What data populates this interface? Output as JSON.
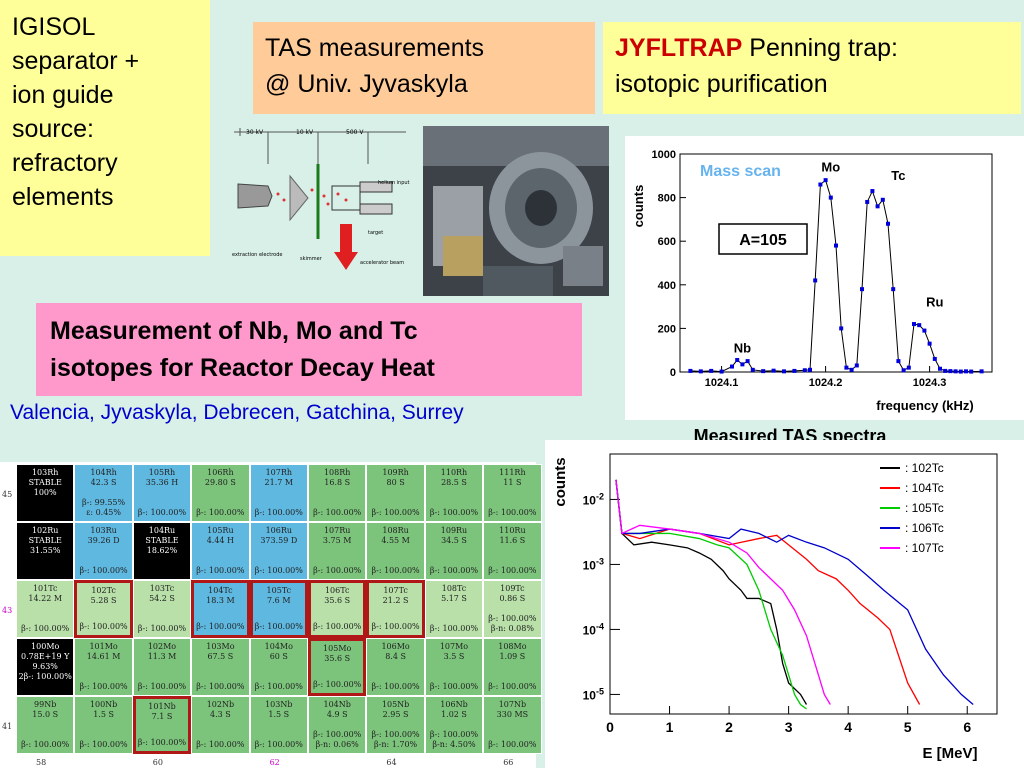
{
  "igisol": [
    "IGISOL",
    "separator +",
    "ion guide",
    "source:",
    "refractory",
    "elements"
  ],
  "tas_box": [
    "TAS measurements",
    "@ Univ. Jyvaskyla"
  ],
  "jyfltrap": {
    "name": "JYFLTRAP",
    "rest": " Penning trap:",
    "line2": "isotopic purification"
  },
  "measurement_title": [
    "Measurement of Nb, Mo and Tc",
    "isotopes for Reactor Decay Heat"
  ],
  "collaboration": "Valencia, Jyvaskyla, Debrecen, Gatchina, Surrey",
  "schematic": {
    "volt1": "30 kV",
    "volt2": "10 kV",
    "volt3": "500 V",
    "label_helium": "helium input",
    "label_target": "target",
    "label_extraction": "extraction electrode",
    "label_skimmer": "skimmer",
    "label_accel": "accelerator beam"
  },
  "colors": {
    "stable": "#000000",
    "z43": "#b8e0a8",
    "green": "#7cc47c",
    "blue": "#5fb8e0",
    "highlight": "#b01818"
  },
  "chart_data": [
    {
      "type": "line",
      "legend_text": "Mass scan",
      "annotation": "A=105",
      "xlabel": "frequency (kHz)",
      "ylabel": "counts",
      "xlim": [
        1024.06,
        1024.36
      ],
      "ylim": [
        0,
        1000
      ],
      "xticks": [
        1024.1,
        1024.2,
        1024.3
      ],
      "yticks": [
        0,
        200,
        400,
        600,
        800,
        1000
      ],
      "peak_labels": [
        {
          "text": "Nb",
          "x": 1024.12,
          "y": 90
        },
        {
          "text": "Mo",
          "x": 1024.205,
          "y": 920
        },
        {
          "text": "Tc",
          "x": 1024.27,
          "y": 880
        },
        {
          "text": "Ru",
          "x": 1024.305,
          "y": 300
        }
      ],
      "x": [
        1024.07,
        1024.08,
        1024.09,
        1024.1,
        1024.11,
        1024.115,
        1024.12,
        1024.125,
        1024.13,
        1024.14,
        1024.15,
        1024.16,
        1024.17,
        1024.18,
        1024.185,
        1024.19,
        1024.195,
        1024.2,
        1024.205,
        1024.21,
        1024.215,
        1024.22,
        1024.225,
        1024.23,
        1024.235,
        1024.24,
        1024.245,
        1024.25,
        1024.255,
        1024.26,
        1024.265,
        1024.27,
        1024.275,
        1024.28,
        1024.285,
        1024.29,
        1024.295,
        1024.3,
        1024.305,
        1024.31,
        1024.315,
        1024.32,
        1024.325,
        1024.33,
        1024.335,
        1024.34,
        1024.35
      ],
      "y": [
        5,
        3,
        5,
        2,
        25,
        55,
        35,
        50,
        10,
        4,
        6,
        3,
        5,
        8,
        10,
        420,
        860,
        880,
        800,
        580,
        200,
        20,
        10,
        30,
        380,
        780,
        830,
        760,
        790,
        680,
        380,
        50,
        8,
        20,
        220,
        215,
        190,
        130,
        60,
        15,
        5,
        4,
        3,
        2,
        3,
        2,
        3
      ]
    },
    {
      "type": "line",
      "title": "Measured TAS spectra",
      "xlabel": "E [MeV]",
      "ylabel": "counts",
      "log_y": true,
      "xlim": [
        0,
        6.5
      ],
      "ylim": [
        5e-06,
        0.05
      ],
      "xticks": [
        0,
        1,
        2,
        3,
        4,
        5,
        6
      ],
      "yticks": [
        {
          "v": 1e-05,
          "label": "10^-5"
        },
        {
          "v": 0.0001,
          "label": "10^-4"
        },
        {
          "v": 0.001,
          "label": "10^-3"
        },
        {
          "v": 0.01,
          "label": "10^-2"
        }
      ],
      "legend_placement": "top-right",
      "series": [
        {
          "name": ": 102Tc",
          "color": "#000000",
          "x": [
            0.1,
            0.2,
            0.4,
            0.7,
            1.0,
            1.3,
            1.5,
            1.7,
            1.9,
            2.0,
            2.2,
            2.3,
            2.5,
            2.7,
            2.8,
            2.9,
            3.0,
            3.2,
            3.3
          ],
          "y": [
            0.02,
            0.003,
            0.002,
            0.0022,
            0.002,
            0.0018,
            0.0015,
            0.0012,
            0.0008,
            0.0006,
            0.0004,
            0.0003,
            0.0003,
            0.00025,
            0.0001,
            3e-05,
            1.5e-05,
            1e-05,
            7e-06
          ]
        },
        {
          "name": ": 104Tc",
          "color": "#ff0000",
          "x": [
            0.1,
            0.2,
            0.5,
            1.0,
            1.5,
            2.0,
            2.5,
            2.8,
            3.0,
            3.3,
            3.5,
            3.8,
            4.0,
            4.2,
            4.5,
            4.7,
            5.0,
            5.2
          ],
          "y": [
            0.02,
            0.003,
            0.0025,
            0.0035,
            0.003,
            0.002,
            0.0025,
            0.0028,
            0.002,
            0.0012,
            0.0008,
            0.0006,
            0.0004,
            0.00025,
            0.00015,
            0.0001,
            1.5e-05,
            7e-06
          ]
        },
        {
          "name": ": 105Tc",
          "color": "#00cc00",
          "x": [
            0.1,
            0.2,
            0.5,
            1.0,
            1.5,
            1.8,
            2.0,
            2.3,
            2.5,
            2.7,
            2.9,
            3.1,
            3.2,
            3.3
          ],
          "y": [
            0.02,
            0.003,
            0.003,
            0.003,
            0.0025,
            0.002,
            0.0018,
            0.001,
            0.0004,
            0.0001,
            4e-05,
            1e-05,
            7e-06,
            6e-06
          ]
        },
        {
          "name": ": 106Tc",
          "color": "#0000cc",
          "x": [
            0.1,
            0.2,
            0.5,
            1.0,
            1.5,
            2.0,
            2.2,
            2.5,
            2.8,
            3.0,
            3.3,
            3.6,
            4.0,
            4.3,
            4.6,
            5.0,
            5.3,
            5.6,
            5.9,
            6.1
          ],
          "y": [
            0.02,
            0.003,
            0.003,
            0.0035,
            0.003,
            0.0025,
            0.0035,
            0.003,
            0.0022,
            0.0028,
            0.0022,
            0.0018,
            0.0012,
            0.0007,
            0.0004,
            0.0002,
            5e-05,
            2e-05,
            1e-05,
            7e-06
          ]
        },
        {
          "name": ": 107Tc",
          "color": "#ff00ff",
          "x": [
            0.1,
            0.2,
            0.5,
            1.0,
            1.5,
            2.0,
            2.3,
            2.5,
            2.7,
            2.9,
            3.1,
            3.3,
            3.5,
            3.6,
            3.7
          ],
          "y": [
            0.02,
            0.003,
            0.004,
            0.0035,
            0.003,
            0.0022,
            0.0015,
            0.0009,
            0.0006,
            0.0004,
            0.0002,
            8e-05,
            2e-05,
            1e-05,
            7e-06
          ]
        }
      ]
    }
  ],
  "nuclide_chart": {
    "row_labels": [
      "45",
      "",
      "43",
      "",
      "41"
    ],
    "col_labels": [
      "58",
      "60",
      "62",
      "64",
      "66"
    ],
    "rows": [
      [
        {
          "n": "103Rh",
          "h": "STABLE",
          "d": "100%",
          "c": "blk"
        },
        {
          "n": "104Rh",
          "h": "42.3 S",
          "d": "β-: 99.55%",
          "d2": "ε: 0.45%",
          "c": "blu"
        },
        {
          "n": "105Rh",
          "h": "35.36 H",
          "d": "β-: 100.00%",
          "c": "blu"
        },
        {
          "n": "106Rh",
          "h": "29.80 S",
          "d": "β-: 100.00%",
          "c": "grn"
        },
        {
          "n": "107Rh",
          "h": "21.7 M",
          "d": "β-: 100.00%",
          "c": "blu"
        },
        {
          "n": "108Rh",
          "h": "16.8 S",
          "d": "β-: 100.00%",
          "c": "grn"
        },
        {
          "n": "109Rh",
          "h": "80 S",
          "d": "β-: 100.00%",
          "c": "grn"
        },
        {
          "n": "110Rh",
          "h": "28.5 S",
          "d": "β-: 100.00%",
          "c": "grn"
        },
        {
          "n": "111Rh",
          "h": "11 S",
          "d": "β-: 100.00%",
          "c": "grn"
        }
      ],
      [
        {
          "n": "102Ru",
          "h": "STABLE",
          "d": "31.55%",
          "c": "blk"
        },
        {
          "n": "103Ru",
          "h": "39.26 D",
          "d": "β-: 100.00%",
          "c": "blu"
        },
        {
          "n": "104Ru",
          "h": "STABLE",
          "d": "18.62%",
          "c": "blk"
        },
        {
          "n": "105Ru",
          "h": "4.44 H",
          "d": "β-: 100.00%",
          "c": "blu"
        },
        {
          "n": "106Ru",
          "h": "373.59 D",
          "d": "β-: 100.00%",
          "c": "blu"
        },
        {
          "n": "107Ru",
          "h": "3.75 M",
          "d": "β-: 100.00%",
          "c": "grn"
        },
        {
          "n": "108Ru",
          "h": "4.55 M",
          "d": "β-: 100.00%",
          "c": "grn"
        },
        {
          "n": "109Ru",
          "h": "34.5 S",
          "d": "β-: 100.00%",
          "c": "grn"
        },
        {
          "n": "110Ru",
          "h": "11.6 S",
          "d": "β-: 100.00%",
          "c": "grn"
        }
      ],
      [
        {
          "n": "101Tc",
          "h": "14.22 M",
          "d": "β-: 100.00%",
          "c": "grn"
        },
        {
          "n": "102Tc",
          "h": "5.28 S",
          "d": "β-: 100.00%",
          "c": "grn",
          "hl": true
        },
        {
          "n": "103Tc",
          "h": "54.2 S",
          "d": "β-: 100.00%",
          "c": "grn"
        },
        {
          "n": "104Tc",
          "h": "18.3 M",
          "d": "β-: 100.00%",
          "c": "blu",
          "hl": true
        },
        {
          "n": "105Tc",
          "h": "7.6 M",
          "d": "β-: 100.00%",
          "c": "blu",
          "hl": true
        },
        {
          "n": "106Tc",
          "h": "35.6 S",
          "d": "β-: 100.00%",
          "c": "grn",
          "hl": true
        },
        {
          "n": "107Tc",
          "h": "21.2 S",
          "d": "β-: 100.00%",
          "c": "grn",
          "hl": true
        },
        {
          "n": "108Tc",
          "h": "5.17 S",
          "d": "β-: 100.00%",
          "c": "grn"
        },
        {
          "n": "109Tc",
          "h": "0.86 S",
          "d": "β-: 100.00%",
          "d2": "β-n: 0.08%",
          "c": "grn"
        }
      ],
      [
        {
          "n": "100Mo",
          "h": "0.78E+19 Y",
          "d": "9.63%",
          "d2": "2β-: 100.00%",
          "c": "blk"
        },
        {
          "n": "101Mo",
          "h": "14.61 M",
          "d": "β-: 100.00%",
          "c": "grn"
        },
        {
          "n": "102Mo",
          "h": "11.3 M",
          "d": "β-: 100.00%",
          "c": "grn"
        },
        {
          "n": "103Mo",
          "h": "67.5 S",
          "d": "β-: 100.00%",
          "c": "grn"
        },
        {
          "n": "104Mo",
          "h": "60 S",
          "d": "β-: 100.00%",
          "c": "grn"
        },
        {
          "n": "105Mo",
          "h": "35.6 S",
          "d": "β-: 100.00%",
          "c": "grn",
          "hl": true
        },
        {
          "n": "106Mo",
          "h": "8.4 S",
          "d": "β-: 100.00%",
          "c": "grn"
        },
        {
          "n": "107Mo",
          "h": "3.5 S",
          "d": "β-: 100.00%",
          "c": "grn"
        },
        {
          "n": "108Mo",
          "h": "1.09 S",
          "d": "β-: 100.00%",
          "c": "grn"
        }
      ],
      [
        {
          "n": "99Nb",
          "h": "15.0 S",
          "d": "β-: 100.00%",
          "c": "grn"
        },
        {
          "n": "100Nb",
          "h": "1.5 S",
          "d": "β-: 100.00%",
          "c": "grn"
        },
        {
          "n": "101Nb",
          "h": "7.1 S",
          "d": "β-: 100.00%",
          "c": "grn",
          "hl": true
        },
        {
          "n": "102Nb",
          "h": "4.3 S",
          "d": "β-: 100.00%",
          "c": "grn"
        },
        {
          "n": "103Nb",
          "h": "1.5 S",
          "d": "β-: 100.00%",
          "c": "grn"
        },
        {
          "n": "104Nb",
          "h": "4.9 S",
          "d": "β-: 100.00%",
          "d2": "β-n: 0.06%",
          "c": "grn"
        },
        {
          "n": "105Nb",
          "h": "2.95 S",
          "d": "β-: 100.00%",
          "d2": "β-n: 1.70%",
          "c": "grn"
        },
        {
          "n": "106Nb",
          "h": "1.02 S",
          "d": "β-: 100.00%",
          "d2": "β-n: 4.50%",
          "c": "grn"
        },
        {
          "n": "107Nb",
          "h": "330 MS",
          "d": "β-: 100.00%",
          "c": "grn"
        }
      ]
    ]
  }
}
